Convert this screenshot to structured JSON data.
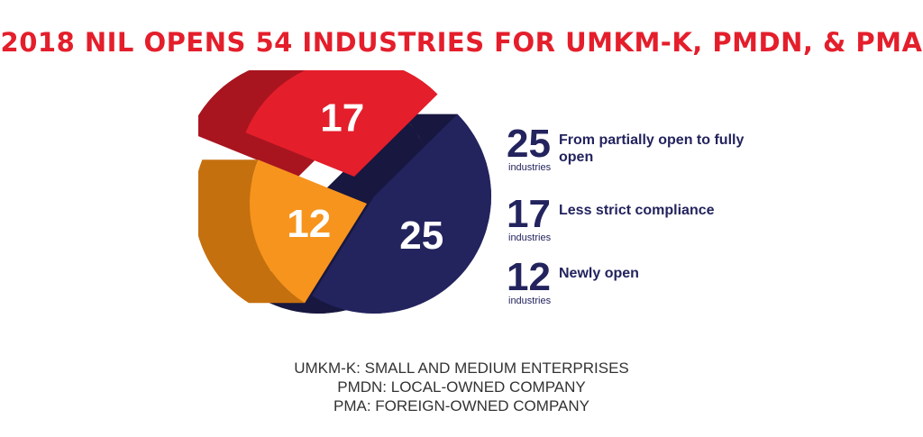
{
  "title": "2018 NIL OPENS 54 INDUSTRIES FOR UMKM-K, PMDN, & PMA",
  "chart_data": {
    "type": "pie",
    "slices": [
      {
        "value": 17,
        "label": "Less strict compliance",
        "color": "#e41e2b",
        "side_color": "#a8151f"
      },
      {
        "value": 25,
        "label": "From partially open to fully open",
        "color": "#23235e",
        "side_color": "#17173f"
      },
      {
        "value": 12,
        "label": "Newly open",
        "color": "#f7941d",
        "side_color": "#c5700f"
      }
    ],
    "total": 54
  },
  "legend": [
    {
      "value": "25",
      "unit": "industries",
      "label": "From partially open to fully open"
    },
    {
      "value": "17",
      "unit": "industries",
      "label": "Less strict compliance"
    },
    {
      "value": "12",
      "unit": "industries",
      "label": "Newly open"
    }
  ],
  "footnotes": [
    "UMKM-K: SMALL AND MEDIUM ENTERPRISES",
    "PMDN: LOCAL-OWNED COMPANY",
    "PMA: FOREIGN-OWNED COMPANY"
  ]
}
